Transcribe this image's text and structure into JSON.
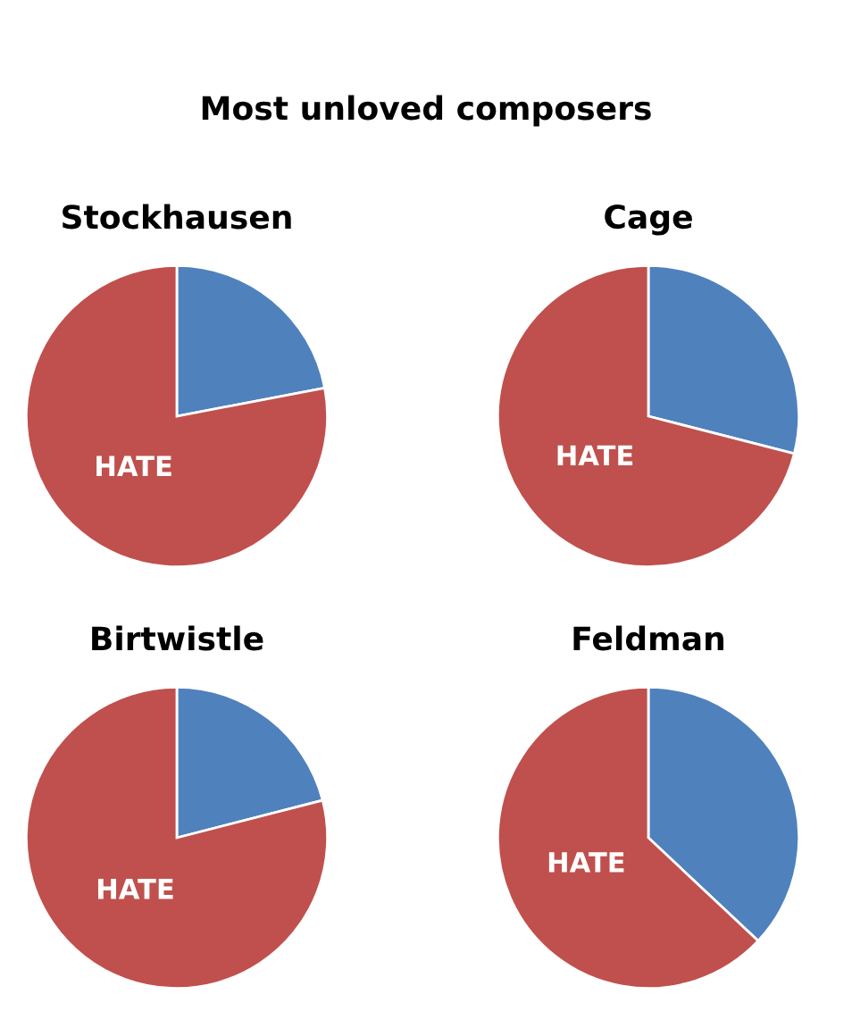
{
  "chart_data": [
    {
      "type": "pie",
      "title": "Stockhausen",
      "annotations": [
        "Most unloved composers"
      ],
      "categories": [
        null,
        "HATE"
      ],
      "values": [
        22,
        78
      ],
      "colors": [
        "#4f81bd",
        "#c0504d"
      ],
      "legend": false
    },
    {
      "type": "pie",
      "title": "Cage",
      "categories": [
        null,
        "HATE"
      ],
      "values": [
        29,
        71
      ],
      "colors": [
        "#4f81bd",
        "#c0504d"
      ],
      "legend": false
    },
    {
      "type": "pie",
      "title": "Birtwistle",
      "categories": [
        null,
        "HATE"
      ],
      "values": [
        21,
        79
      ],
      "colors": [
        "#4f81bd",
        "#c0504d"
      ],
      "legend": false
    },
    {
      "type": "pie",
      "title": "Feldman",
      "categories": [
        null,
        "HATE"
      ],
      "values": [
        37,
        63
      ],
      "colors": [
        "#4f81bd",
        "#c0504d"
      ],
      "legend": false
    }
  ]
}
